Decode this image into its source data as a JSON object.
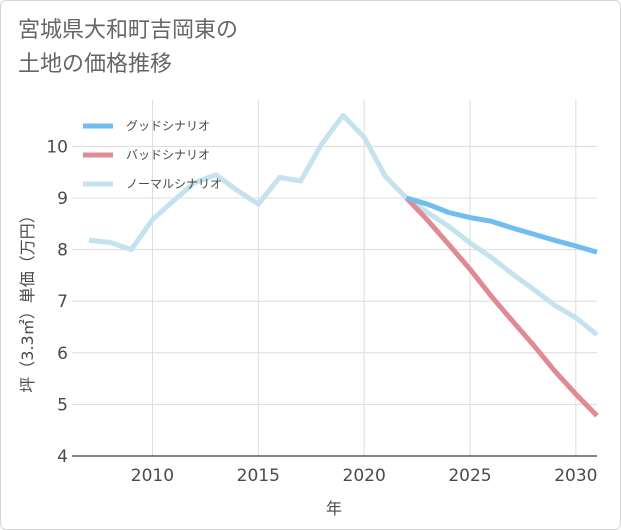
{
  "chart_data": {
    "type": "line",
    "title_line1": "宮城県大和町吉岡東の",
    "title_line2": "土地の価格推移",
    "xlabel": "年",
    "ylabel": "坪（3.3㎡）単価（万円）",
    "xlim": [
      2006.2,
      2031
    ],
    "ylim": [
      4,
      10.9
    ],
    "x_ticks": [
      2010,
      2015,
      2020,
      2025,
      2030
    ],
    "y_ticks": [
      4,
      5,
      6,
      7,
      8,
      9,
      10
    ],
    "grid": true,
    "legend_position": "top-left",
    "series": [
      {
        "name": "グッドシナリオ",
        "color": "#72bdf0",
        "x": [
          2022,
          2023,
          2024,
          2025,
          2026,
          2027,
          2028,
          2029,
          2030,
          2031
        ],
        "y": [
          9.0,
          8.88,
          8.72,
          8.62,
          8.55,
          8.42,
          8.3,
          8.18,
          8.07,
          7.95
        ]
      },
      {
        "name": "バッドシナリオ",
        "color": "#e08a93",
        "x": [
          2022,
          2023,
          2024,
          2025,
          2026,
          2027,
          2028,
          2029,
          2030,
          2031
        ],
        "y": [
          9.0,
          8.57,
          8.1,
          7.62,
          7.1,
          6.62,
          6.15,
          5.65,
          5.2,
          4.78
        ]
      },
      {
        "name": "ノーマルシナリオ",
        "color": "#c5e2ef",
        "x": [
          2007,
          2008,
          2009,
          2010,
          2011,
          2012,
          2013,
          2014,
          2015,
          2016,
          2017,
          2018,
          2019,
          2020,
          2021,
          2022,
          2023,
          2024,
          2025,
          2026,
          2027,
          2028,
          2029,
          2030,
          2031
        ],
        "y": [
          8.18,
          8.14,
          8.0,
          8.58,
          8.95,
          9.3,
          9.45,
          9.15,
          8.88,
          9.4,
          9.33,
          10.05,
          10.6,
          10.18,
          9.42,
          9.0,
          8.72,
          8.45,
          8.13,
          7.85,
          7.53,
          7.23,
          6.92,
          6.68,
          6.35
        ]
      }
    ]
  }
}
